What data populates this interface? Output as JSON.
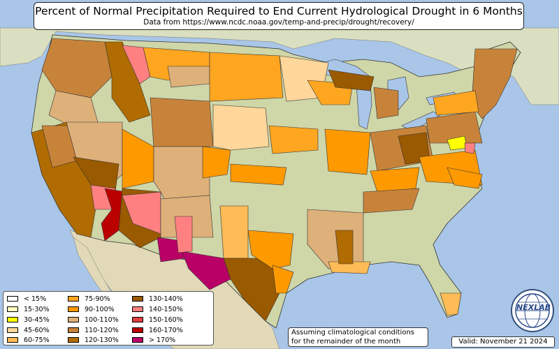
{
  "title": "Percent of Normal Precipitation Required to End Current Hydrological Drought in 6 Months",
  "subtitle": "Data from https://www.ncdc.noaa.gov/temp-and-precip/drought/recovery/",
  "legend": [
    {
      "label": "< 15%",
      "color": "#ffffff"
    },
    {
      "label": "15-30%",
      "color": "#ffffc0"
    },
    {
      "label": "30-45%",
      "color": "#ffff00"
    },
    {
      "label": "45-60%",
      "color": "#ffd79a"
    },
    {
      "label": "60-75%",
      "color": "#ffbb55"
    },
    {
      "label": "75-90%",
      "color": "#ffa620"
    },
    {
      "label": "90-100%",
      "color": "#ff9900"
    },
    {
      "label": "100-110%",
      "color": "#deb07a"
    },
    {
      "label": "110-120%",
      "color": "#c8833a"
    },
    {
      "label": "120-130%",
      "color": "#b06c00"
    },
    {
      "label": "130-140%",
      "color": "#9a5a00"
    },
    {
      "label": "140-150%",
      "color": "#ff8080"
    },
    {
      "label": "150-160%",
      "color": "#e04040"
    },
    {
      "label": "160-170%",
      "color": "#bb0000"
    },
    {
      "label": "> 170%",
      "color": "#b80066"
    }
  ],
  "note": [
    "Assuming climatological conditions",
    "for the remainder of the month"
  ],
  "valid": "Valid: November 21 2024",
  "logo": {
    "text": "NEXLAB",
    "icon": "globe-logo-icon"
  },
  "colors": {
    "ocean": "#a9c6e8",
    "land": "#cfd6a8",
    "mexico": "#e2d9b8",
    "canada": "#d9dfc0",
    "lake": "#a9c6e8"
  }
}
